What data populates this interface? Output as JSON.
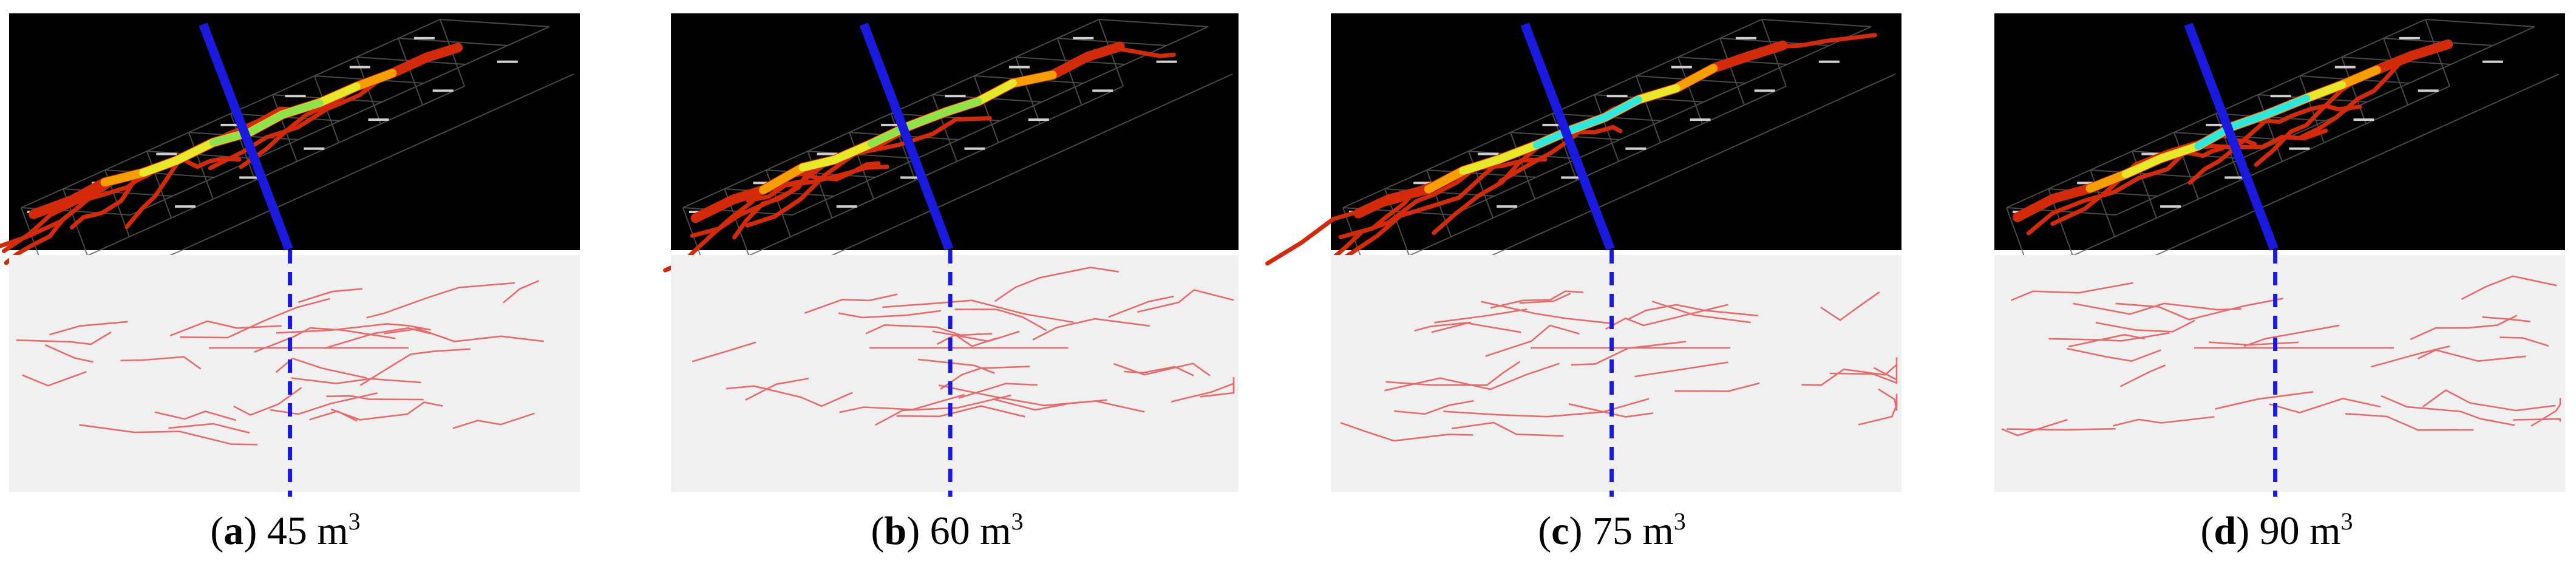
{
  "colors": {
    "background": "#ffffff",
    "sim_background": "#000000",
    "sim_grid": "#5a5a5a",
    "well_line": "#1a1adf",
    "trace_panel": "#f0f0f0",
    "trace_line": "#e86a6a",
    "fracture_hot": "#d42a0a",
    "fracture_warm": "#f5a000",
    "fracture_mid": "#e8e82a",
    "fracture_green": "#8ee24a",
    "fracture_cyan": "#2ee8e0"
  },
  "panels": [
    {
      "id": "a",
      "caption_open": "(",
      "caption_letter": "a",
      "caption_close": ")",
      "caption_value": " 45 m",
      "caption_unit_sup": "3",
      "core_color": "#8ee24a"
    },
    {
      "id": "b",
      "caption_open": "(",
      "caption_letter": "b",
      "caption_close": ")",
      "caption_value": " 60 m",
      "caption_unit_sup": "3",
      "core_color": "#8ee24a"
    },
    {
      "id": "c",
      "caption_open": "(",
      "caption_letter": "c",
      "caption_close": ")",
      "caption_value": " 75 m",
      "caption_unit_sup": "3",
      "core_color": "#2ee8e0"
    },
    {
      "id": "d",
      "caption_open": "(",
      "caption_letter": "d",
      "caption_close": ")",
      "caption_value": " 90 m",
      "caption_unit_sup": "3",
      "core_color": "#2ee8e0"
    }
  ]
}
